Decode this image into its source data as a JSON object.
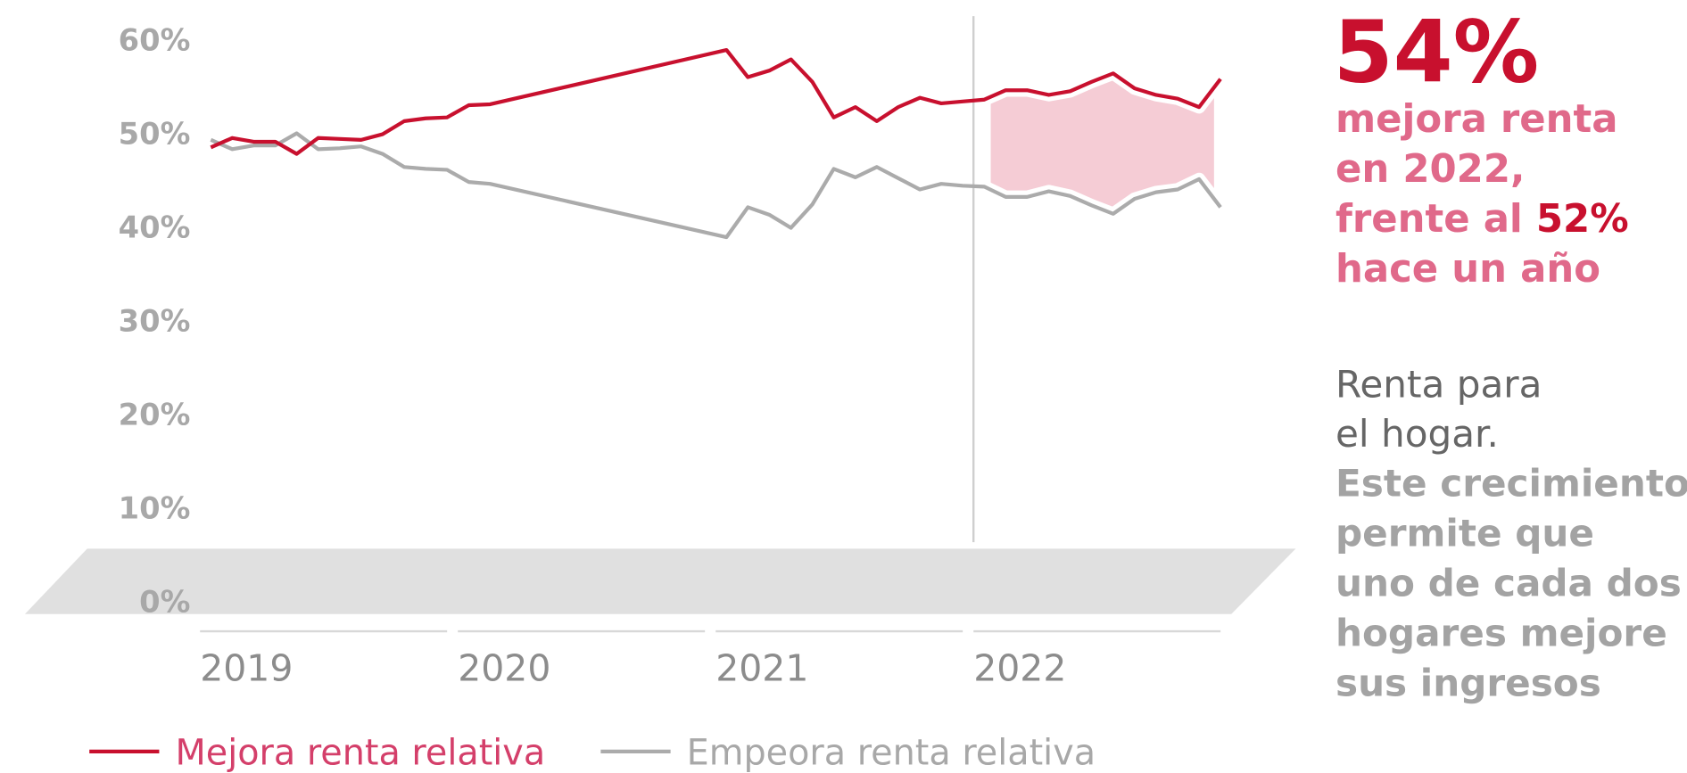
{
  "chart_data": {
    "type": "line",
    "x": [
      2019.042,
      2019.125,
      2019.208,
      2019.292,
      2019.375,
      2019.458,
      2019.542,
      2019.625,
      2019.708,
      2019.792,
      2019.875,
      2019.958,
      2020.042,
      2020.125,
      2021.042,
      2021.125,
      2021.208,
      2021.292,
      2021.375,
      2021.458,
      2021.542,
      2021.625,
      2021.708,
      2021.792,
      2021.875,
      2021.958,
      2022.042,
      2022.125,
      2022.208,
      2022.292,
      2022.375,
      2022.458,
      2022.542,
      2022.625,
      2022.708,
      2022.792,
      2022.875,
      2022.958
    ],
    "series": [
      {
        "name": "Mejora renta relativa",
        "color": "#c8102e",
        "values": [
          48.5,
          49.5,
          49.1,
          49.1,
          47.8,
          49.5,
          49.4,
          49.3,
          49.9,
          51.3,
          51.6,
          51.7,
          53.0,
          53.1,
          58.9,
          56.0,
          56.7,
          57.9,
          55.5,
          51.7,
          52.8,
          51.3,
          52.8,
          53.8,
          53.2,
          53.4,
          53.6,
          54.6,
          54.6,
          54.1,
          54.5,
          55.5,
          56.4,
          54.8,
          54.1,
          53.7,
          52.8,
          55.8
        ]
      },
      {
        "name": "Empeora renta relativa",
        "color": "#ababab",
        "values": [
          49.3,
          48.3,
          48.7,
          48.7,
          50.0,
          48.3,
          48.4,
          48.6,
          47.8,
          46.4,
          46.2,
          46.1,
          44.8,
          44.6,
          38.9,
          42.1,
          41.3,
          39.9,
          42.4,
          46.2,
          45.3,
          46.4,
          45.2,
          44.0,
          44.6,
          44.4,
          44.3,
          43.2,
          43.2,
          43.8,
          43.3,
          42.3,
          41.4,
          43.0,
          43.7,
          44.0,
          45.1,
          42.1
        ]
      }
    ],
    "xlim": [
      2019,
      2023
    ],
    "xticks": [
      2019,
      2020,
      2021,
      2022
    ],
    "ylim": [
      0,
      60
    ],
    "yticks": [
      {
        "value": 0,
        "label": "0%"
      },
      {
        "value": 10,
        "label": "10%"
      },
      {
        "value": 20,
        "label": "20%"
      },
      {
        "value": 30,
        "label": "30%"
      },
      {
        "value": 40,
        "label": "40%"
      },
      {
        "value": 50,
        "label": "50%"
      },
      {
        "value": 60,
        "label": "60%"
      }
    ],
    "highlight_x": 2022,
    "highlight_color": "#f5ccd5",
    "headline": "54%",
    "headline_lines": [
      "mejora renta",
      "en 2022,",
      "frente al",
      "hace un año"
    ],
    "headline_emphasis": "52%",
    "note_title_lines": [
      "Renta para",
      "el hogar."
    ],
    "note_lines": [
      "Este crecimiento",
      "permite que",
      "uno de cada dos",
      "hogares mejore",
      "sus ingresos"
    ]
  }
}
